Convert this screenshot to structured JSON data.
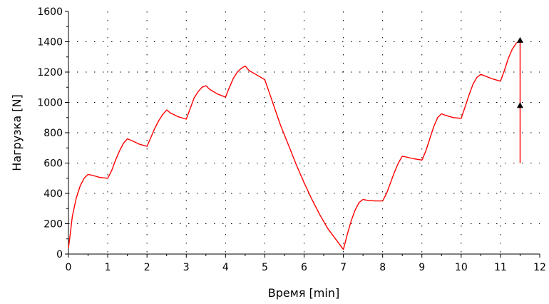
{
  "chart_data": {
    "type": "line",
    "title": "",
    "xlabel": "Время [min]",
    "ylabel": "Нагрузка [N]",
    "xlim": [
      0,
      12
    ],
    "ylim": [
      0,
      1600
    ],
    "xticks": [
      0,
      1,
      2,
      3,
      4,
      5,
      6,
      7,
      8,
      9,
      10,
      11,
      12
    ],
    "yticks": [
      0,
      200,
      400,
      600,
      800,
      1000,
      1200,
      1400,
      1600
    ],
    "grid": "dotted",
    "legend": "none",
    "colors": {
      "line": "#ff0000",
      "axis": "#000000",
      "grid": "#000000",
      "marker": "#000000"
    },
    "series": [
      {
        "values_note": "",
        "x": [
          0,
          0.04,
          0.1,
          0.2,
          0.3,
          0.4,
          0.5,
          0.6,
          0.8,
          1.0,
          1.1,
          1.2,
          1.3,
          1.4,
          1.5,
          1.6,
          1.8,
          2.0,
          2.1,
          2.2,
          2.3,
          2.4,
          2.5,
          2.6,
          2.8,
          3.0,
          3.1,
          3.2,
          3.3,
          3.4,
          3.5,
          3.6,
          3.8,
          4.0,
          4.1,
          4.2,
          4.3,
          4.4,
          4.5,
          4.6,
          4.8,
          5.0,
          5.2,
          5.4,
          5.6,
          5.8,
          6.0,
          6.2,
          6.4,
          6.6,
          6.8,
          7.0,
          7.1,
          7.2,
          7.3,
          7.4,
          7.5,
          7.6,
          7.8,
          8.0,
          8.1,
          8.2,
          8.3,
          8.4,
          8.5,
          8.6,
          8.8,
          9.0,
          9.1,
          9.2,
          9.3,
          9.4,
          9.5,
          9.6,
          9.8,
          10.0,
          10.1,
          10.2,
          10.3,
          10.4,
          10.5,
          10.6,
          10.8,
          11.0,
          11.1,
          11.2,
          11.3,
          11.4,
          11.5
        ],
        "y": [
          40,
          120,
          250,
          370,
          450,
          500,
          525,
          520,
          505,
          500,
          550,
          620,
          680,
          730,
          760,
          750,
          725,
          710,
          770,
          830,
          880,
          920,
          950,
          930,
          905,
          890,
          960,
          1030,
          1070,
          1100,
          1110,
          1085,
          1055,
          1035,
          1100,
          1160,
          1200,
          1225,
          1240,
          1210,
          1180,
          1150,
          1000,
          850,
          720,
          590,
          470,
          360,
          260,
          170,
          100,
          30,
          130,
          220,
          290,
          340,
          360,
          355,
          350,
          350,
          400,
          470,
          540,
          600,
          645,
          640,
          628,
          620,
          680,
          760,
          840,
          900,
          925,
          915,
          900,
          895,
          970,
          1050,
          1120,
          1165,
          1185,
          1175,
          1155,
          1140,
          1210,
          1290,
          1350,
          1390,
          1410
        ]
      }
    ],
    "vertical_segment": {
      "x": 11.5,
      "y_from": 600,
      "y_to": 1410
    },
    "markers": [
      {
        "x": 11.5,
        "y": 1410
      },
      {
        "x": 11.5,
        "y": 980
      }
    ]
  }
}
